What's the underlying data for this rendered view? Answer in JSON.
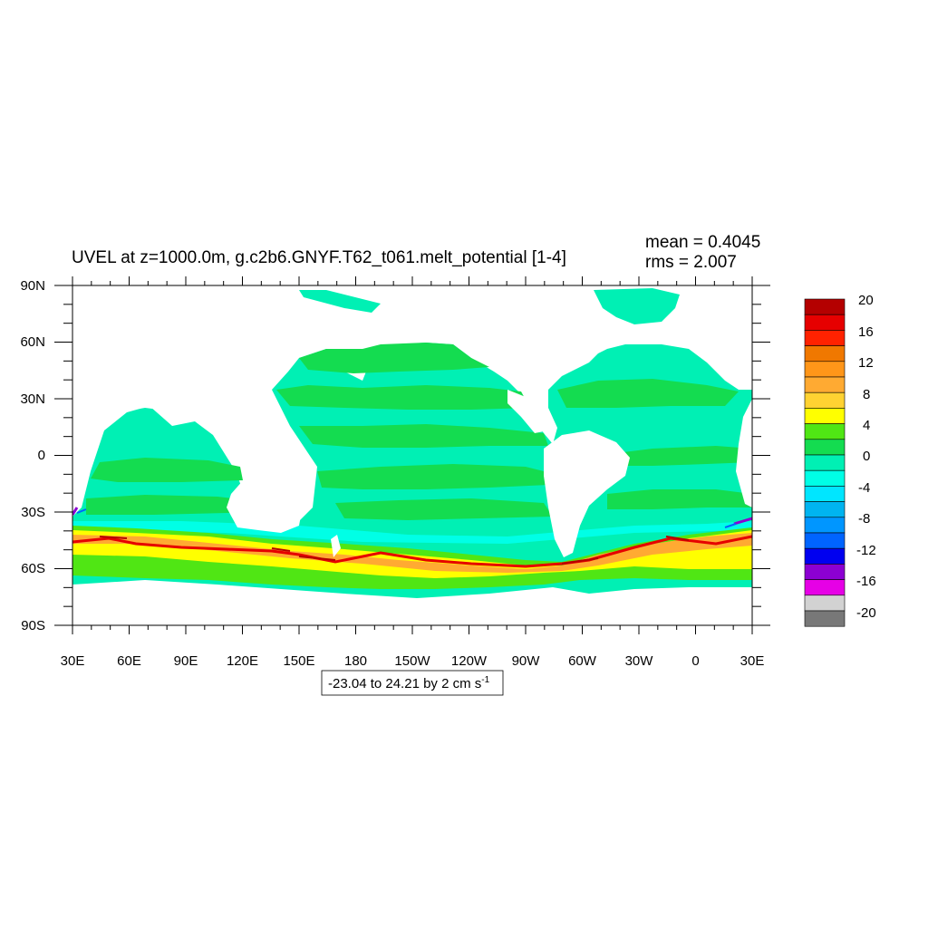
{
  "title": "UVEL at z=1000.0m, g.c2b6.GNYF.T62_t061.melt_potential [1-4]",
  "stats": {
    "mean_label": "mean = 0.4045",
    "rms_label": "rms = 2.007"
  },
  "range_label_text": "-23.04 to 24.21 by 2 cm s",
  "range_label_sup": "-1",
  "chart_data": {
    "type": "heatmap",
    "title": "UVEL at z=1000.0m, g.c2b6.GNYF.T62_t061.melt_potential [1-4]",
    "variable": "UVEL",
    "depth": "z=1000.0m",
    "units": "cm s-1",
    "mean": 0.4045,
    "rms": 2.007,
    "data_min": -23.04,
    "data_max": 24.21,
    "contour_interval": 2,
    "x_ticks": [
      "30E",
      "60E",
      "90E",
      "120E",
      "150E",
      "180",
      "150W",
      "120W",
      "90W",
      "60W",
      "30W",
      "0",
      "30E"
    ],
    "x_tick_values": [
      30,
      60,
      90,
      120,
      150,
      180,
      210,
      240,
      270,
      300,
      330,
      360,
      390
    ],
    "y_ticks": [
      "90N",
      "60N",
      "30N",
      "0",
      "30S",
      "60S",
      "90S"
    ],
    "y_tick_values": [
      90,
      60,
      30,
      0,
      -30,
      -60,
      -90
    ],
    "xlim": [
      30,
      390
    ],
    "ylim": [
      -90,
      90
    ],
    "colorbar_labels": [
      "20",
      "16",
      "12",
      "8",
      "4",
      "0",
      "-4",
      "-8",
      "-12",
      "-16",
      "-20"
    ],
    "colorbar_levels": [
      20,
      18,
      16,
      14,
      12,
      10,
      8,
      6,
      4,
      2,
      0,
      -2,
      -4,
      -6,
      -8,
      -10,
      -12,
      -14,
      -16,
      -18,
      -20
    ],
    "colorbar_colors": [
      "#b40000",
      "#e60000",
      "#ff2200",
      "#f07800",
      "#ff9619",
      "#ffaa32",
      "#ffd232",
      "#ffff00",
      "#50e614",
      "#14dc50",
      "#00f0b4",
      "#00ffe6",
      "#00e6ff",
      "#00b4f0",
      "#0096ff",
      "#0064ff",
      "#0000f0",
      "#8c00d2",
      "#e600e6",
      "#d2d2d2",
      "#787878"
    ]
  }
}
